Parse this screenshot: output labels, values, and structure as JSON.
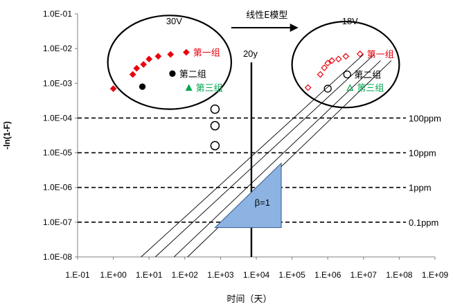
{
  "chart_data": {
    "type": "scatter",
    "xlabel": "时间（天）",
    "ylabel": "-ln(1-F)",
    "xscale": "log",
    "yscale": "log",
    "xlim": [
      0.1,
      1000000000
    ],
    "ylim": [
      1e-08,
      0.1
    ],
    "x_ticks": [
      "1.E-01",
      "1.E+00",
      "1.E+01",
      "1.E+02",
      "1.E+03",
      "1.E+04",
      "1.E+05",
      "1.E+06",
      "1.E+07",
      "1.E+08",
      "1.E+09"
    ],
    "y_ticks": [
      "1.0E-08",
      "1.0E-07",
      "1.0E-06",
      "1.0E-05",
      "1.0E-04",
      "1.0E-03",
      "1.0E-02",
      "1.0E-01"
    ],
    "groups": [
      {
        "label": "30V",
        "series": [
          {
            "name": "第一组",
            "color": "#e8000d",
            "marker": "filled-diamond",
            "points": [
              [
                1.0,
                0.0007
              ],
              [
                3.5,
                0.0018
              ],
              [
                4.5,
                0.0027
              ],
              [
                7,
                0.0035
              ],
              [
                10,
                0.005
              ],
              [
                18,
                0.006
              ],
              [
                40,
                0.0068
              ],
              [
                110,
                0.0078
              ]
            ]
          },
          {
            "name": "第二组",
            "color": "#000000",
            "marker": "filled-circle",
            "points": [
              [
                6.5,
                0.0008
              ],
              [
                45,
                0.0019
              ]
            ]
          },
          {
            "name": "第三组",
            "color": "#00a650",
            "marker": "filled-triangle",
            "points": [
              [
                130,
                0.00075
              ]
            ]
          }
        ]
      },
      {
        "label": "18V",
        "series": [
          {
            "name": "第一组",
            "color": "#e8000d",
            "marker": "open-diamond",
            "points": [
              [
                280000,
                0.00075
              ],
              [
                620000,
                0.0018
              ],
              [
                800000,
                0.0028
              ],
              [
                1000000,
                0.0038
              ],
              [
                1300000,
                0.0045
              ],
              [
                2000000,
                0.005
              ],
              [
                3200000,
                0.006
              ],
              [
                8000000,
                0.007
              ]
            ]
          },
          {
            "name": "第二组",
            "color": "#000000",
            "marker": "open-circle",
            "points": [
              [
                1000000,
                0.0007
              ],
              [
                3500000,
                0.0018
              ]
            ]
          },
          {
            "name": "第三组",
            "color": "#00a650",
            "marker": "open-triangle",
            "points": [
              [
                4200000,
                0.00075
              ]
            ]
          }
        ]
      }
    ],
    "extra_points": {
      "marker": "open-circle",
      "color": "#000000",
      "points": [
        [
          700,
          0.00018
        ],
        [
          700,
          6e-05
        ],
        [
          700,
          1.6e-05
        ]
      ]
    },
    "reference_lines": [
      {
        "label": "100ppm",
        "y": 0.0001
      },
      {
        "label": "10ppm",
        "y": 1e-05
      },
      {
        "label": "1ppm",
        "y": 1e-06
      },
      {
        "label": "0.1ppm",
        "y": 1e-07
      }
    ],
    "vertical_line": {
      "label": "20y",
      "x": 7300
    },
    "model_lines": [
      {
        "from": [
          6,
          1e-08
        ],
        "to": [
          10000000,
          0.0068
        ]
      },
      {
        "from": [
          15,
          1e-08
        ],
        "to": [
          20000000,
          0.0068
        ]
      },
      {
        "from": [
          50,
          1e-08
        ],
        "to": [
          30000000,
          0.0045
        ]
      },
      {
        "from": [
          120,
          1e-08
        ],
        "to": [
          60000000,
          0.0045
        ]
      }
    ],
    "slope_triangle": {
      "label": "β=1",
      "vertices": [
        [
          700,
          7e-08
        ],
        [
          50000,
          7e-08
        ],
        [
          50000,
          5e-06
        ]
      ],
      "color": "#8db3e2"
    },
    "arrow": {
      "label": "线性E模型",
      "from": [
        2000,
        0.04
      ],
      "to": [
        150000,
        0.04
      ]
    },
    "title": "",
    "grid": false
  }
}
